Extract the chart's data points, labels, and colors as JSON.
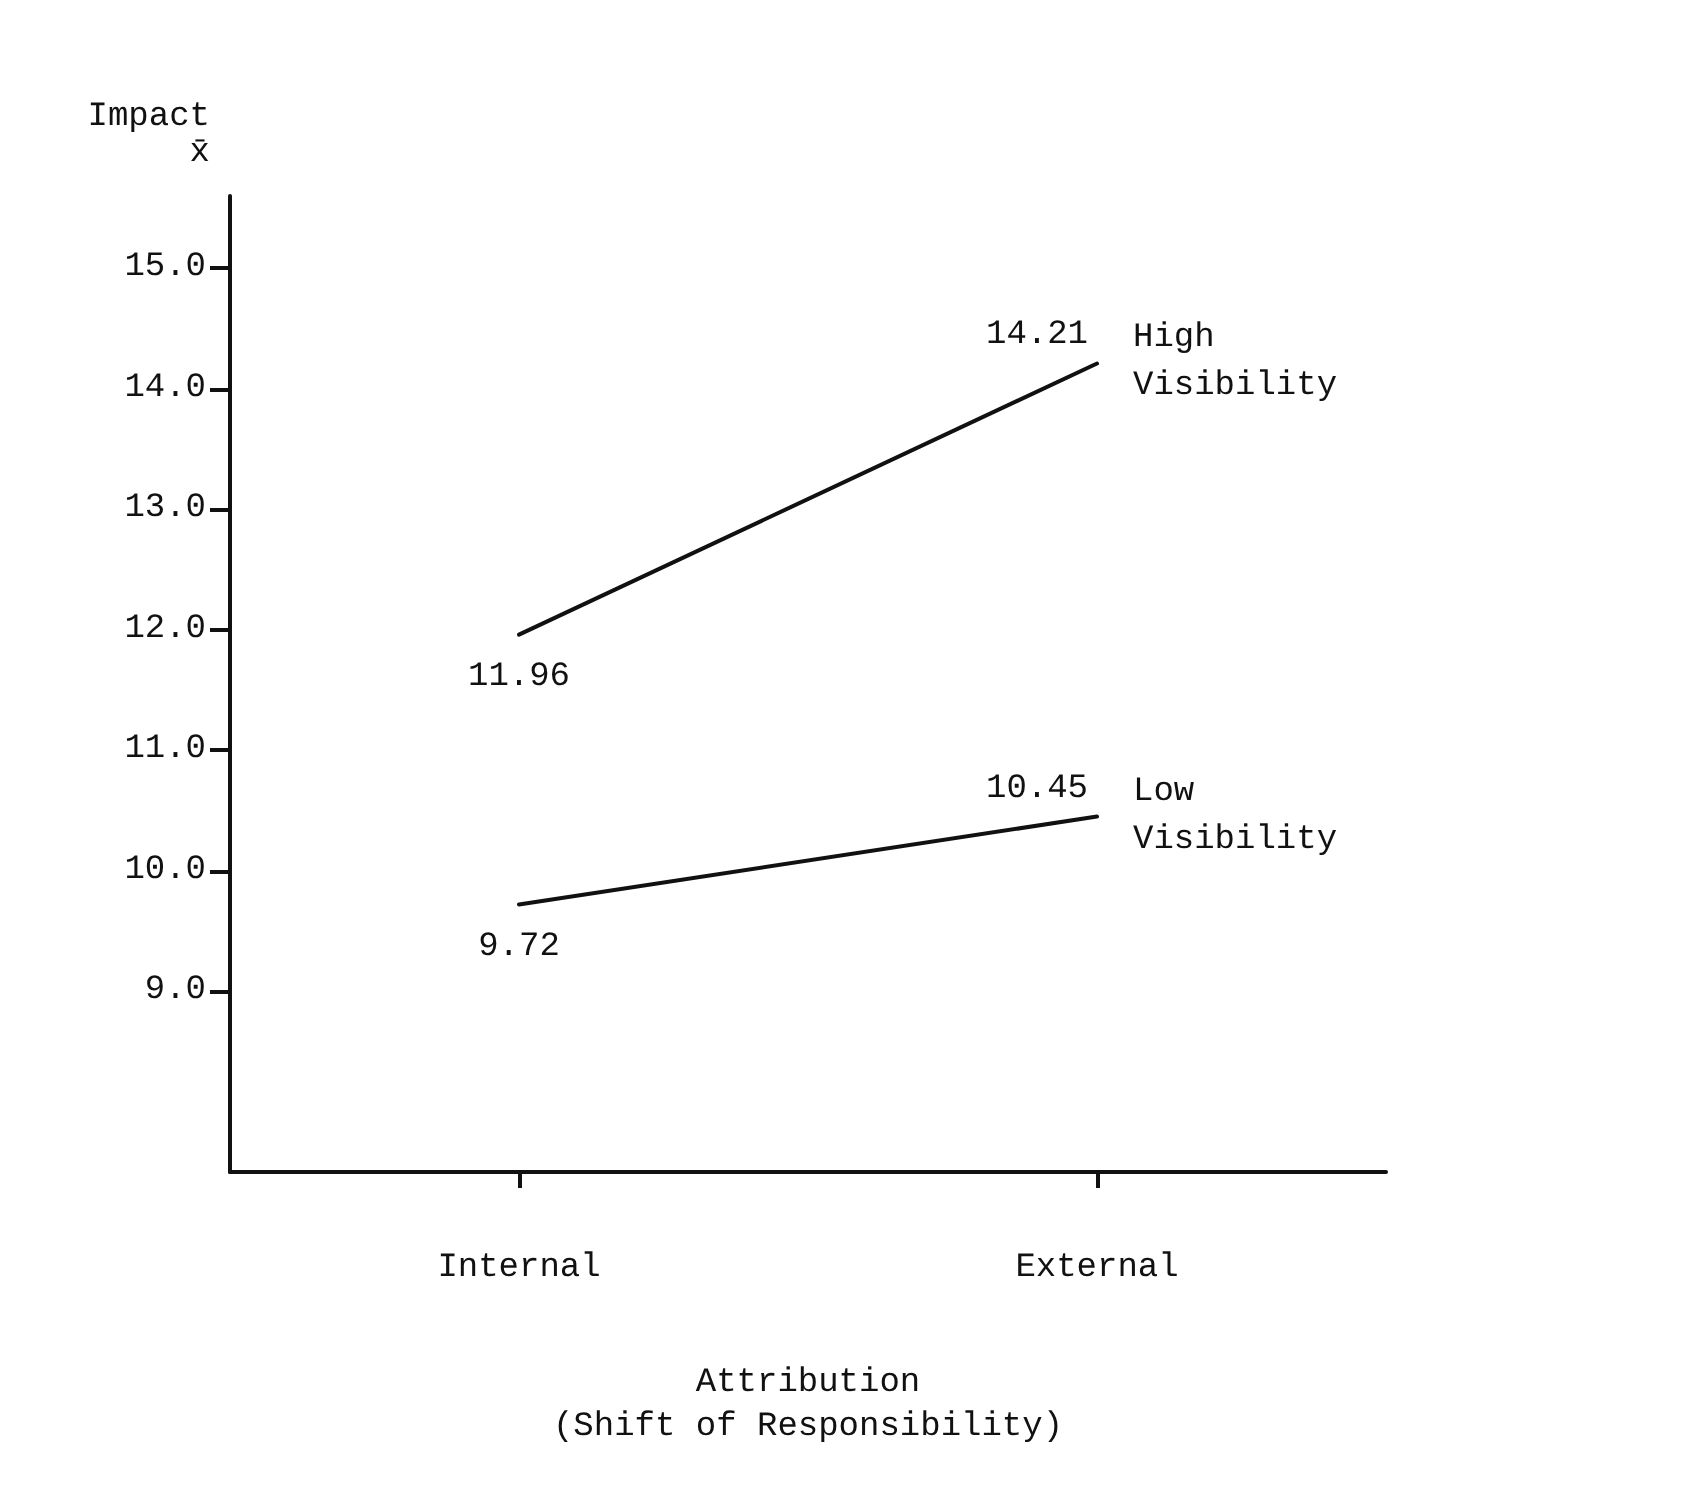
{
  "chart_data": {
    "type": "line",
    "xlabel": "Attribution\n(Shift of Responsibility)",
    "ylabel": "Impact\nx̄",
    "categories": [
      "Internal",
      "External"
    ],
    "series": [
      {
        "name": "High Visibility",
        "color": "#111111",
        "values": [
          11.96,
          14.21
        ]
      },
      {
        "name": "Low Visibility",
        "color": "#111111",
        "values": [
          9.72,
          10.45
        ]
      }
    ],
    "ylim": [
      7.5,
      15.6
    ],
    "yticks": [
      {
        "value": 9,
        "label": "9.0"
      },
      {
        "value": 10,
        "label": "10.0"
      },
      {
        "value": 11,
        "label": "11.0"
      },
      {
        "value": 12,
        "label": "12.0"
      },
      {
        "value": 13,
        "label": "13.0"
      },
      {
        "value": 14,
        "label": "14.0"
      },
      {
        "value": 15,
        "label": "15.0"
      }
    ],
    "grid": false,
    "legend": false,
    "marker": "none",
    "line_style": "solid",
    "data_labels": true
  }
}
